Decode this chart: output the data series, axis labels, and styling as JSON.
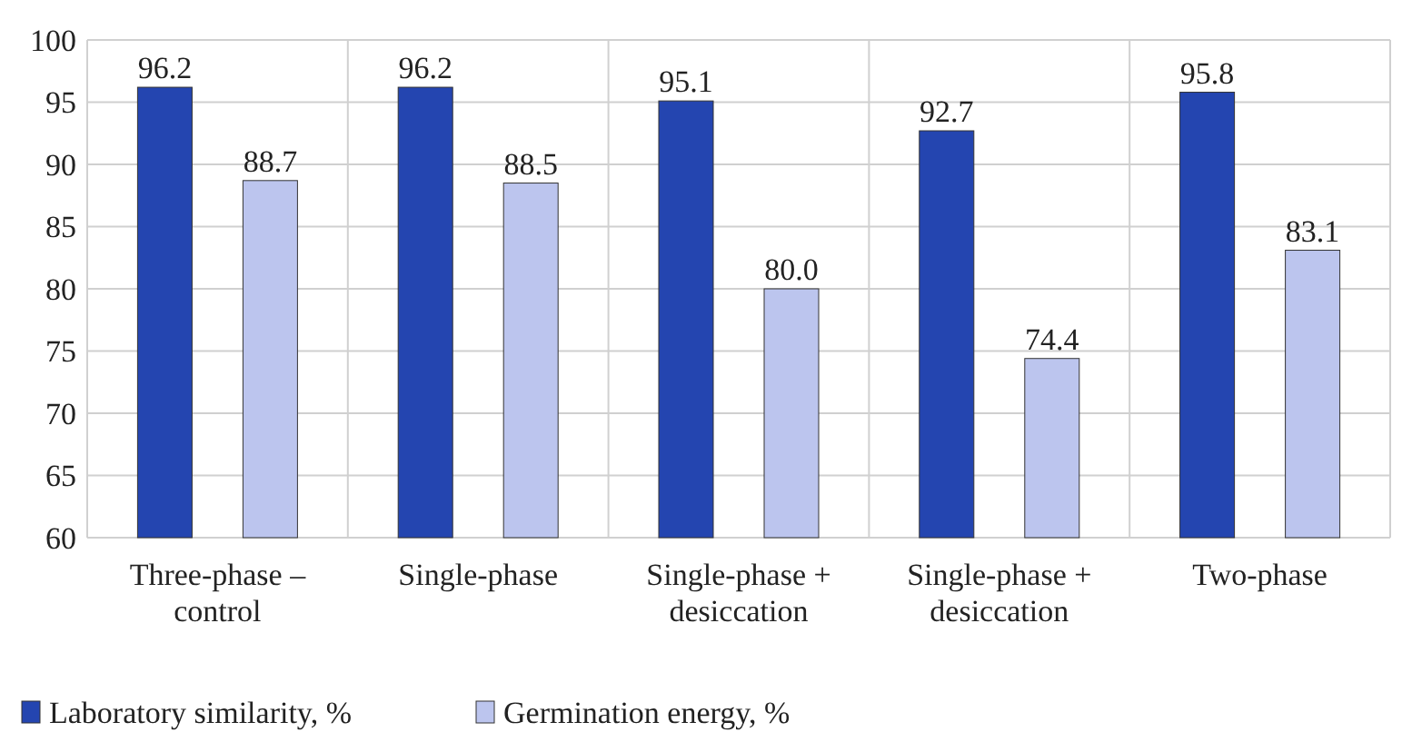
{
  "chart_data": {
    "type": "bar",
    "categories": [
      "Three-phase – control",
      "Single-phase",
      "Single-phase + desiccation",
      "Single-phase + desiccation",
      "Two-phase"
    ],
    "series": [
      {
        "name": "Laboratory similarity, %",
        "color": "#2445b0",
        "values": [
          96.2,
          96.2,
          95.1,
          92.7,
          95.8
        ],
        "value_labels": [
          "96.2",
          "96.2",
          "95.1",
          "92.7",
          "95.8"
        ]
      },
      {
        "name": "Germination energy, %",
        "color": "#bcc5ee",
        "values": [
          88.7,
          88.5,
          80.0,
          74.4,
          83.1
        ],
        "value_labels": [
          "88.7",
          "88.5",
          "80.0",
          "74.4",
          "83.1"
        ]
      }
    ],
    "ylim": [
      60,
      100
    ],
    "yticks": [
      60,
      65,
      70,
      75,
      80,
      85,
      90,
      95,
      100
    ],
    "grid": true,
    "legend": "bottom left"
  }
}
